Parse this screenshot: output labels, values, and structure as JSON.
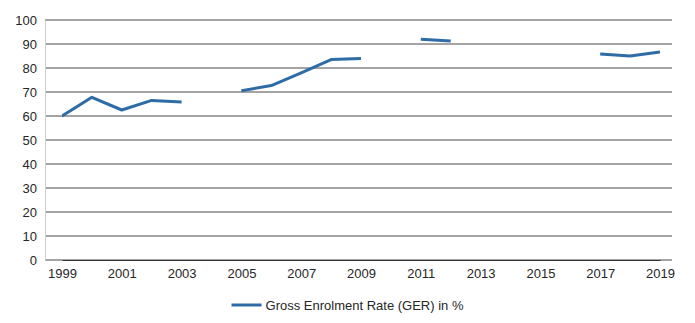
{
  "chart_data": {
    "type": "line",
    "x": [
      1999,
      2000,
      2001,
      2002,
      2003,
      2004,
      2005,
      2006,
      2007,
      2008,
      2009,
      2010,
      2011,
      2012,
      2013,
      2014,
      2015,
      2016,
      2017,
      2018,
      2019
    ],
    "series": [
      {
        "name": "Gross Enrolment Rate (GER) in %",
        "color": "#2e6ca6",
        "values": [
          60,
          67.8,
          62.5,
          66.5,
          65.8,
          null,
          70.5,
          72.7,
          78,
          83.5,
          84,
          null,
          92,
          91.2,
          null,
          null,
          null,
          null,
          85.8,
          85,
          86.7
        ]
      }
    ],
    "xlim": [
      1999,
      2019
    ],
    "xticks": [
      1999,
      2001,
      2003,
      2005,
      2007,
      2009,
      2011,
      2013,
      2015,
      2017,
      2019
    ],
    "ylim": [
      0,
      100
    ],
    "yticks": [
      0,
      10,
      20,
      30,
      40,
      50,
      60,
      70,
      80,
      90,
      100
    ],
    "grid": true,
    "legend": "bottom"
  }
}
